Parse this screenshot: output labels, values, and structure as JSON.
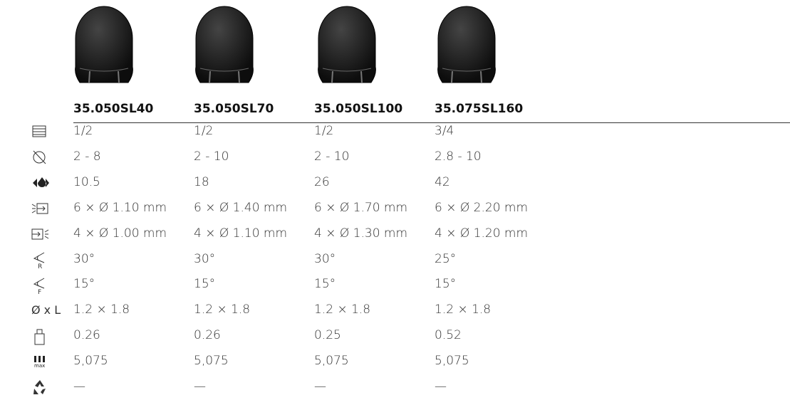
{
  "table": {
    "headers": [
      "35.050SL40",
      "35.050SL70",
      "35.050SL100",
      "35.075SL160"
    ],
    "rows": [
      {
        "cells": [
          "1/2",
          "1/2",
          "1/2",
          "3/4"
        ]
      },
      {
        "cells": [
          "2 - 8",
          "2 - 10",
          "2 - 10",
          "2.8 - 10"
        ]
      },
      {
        "cells": [
          "10.5",
          "18",
          "26",
          "42"
        ]
      },
      {
        "cells": [
          "6 × Ø 1.10 mm",
          "6 × Ø 1.40 mm",
          "6 × Ø 1.70 mm",
          "6 × Ø 2.20 mm"
        ]
      },
      {
        "cells": [
          "4 × Ø 1.00 mm",
          "4 × Ø 1.10 mm",
          "4 × Ø 1.30 mm",
          "4 × Ø 1.20 mm"
        ]
      },
      {
        "cells": [
          "30°",
          "30°",
          "30°",
          "25°"
        ]
      },
      {
        "cells": [
          "15°",
          "15°",
          "15°",
          "15°"
        ]
      },
      {
        "label": "Ø x L",
        "cells": [
          "1.2 × 1.8",
          "1.2 × 1.8",
          "1.2 × 1.8",
          "1.2 × 1.8"
        ]
      },
      {
        "cells": [
          "0.26",
          "0.26",
          "0.25",
          "0.52"
        ]
      },
      {
        "cells": [
          "5,075",
          "5,075",
          "5,075",
          "5,075"
        ]
      },
      {
        "cells": [
          "—",
          "—",
          "—",
          "—"
        ]
      }
    ]
  }
}
